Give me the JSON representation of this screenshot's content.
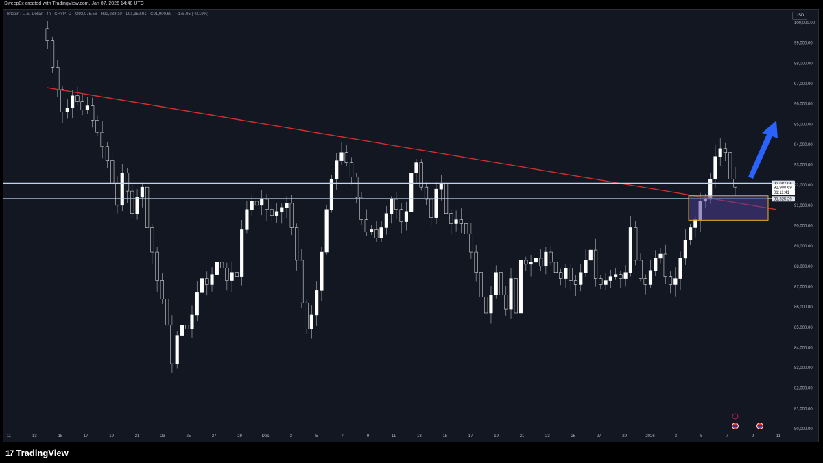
{
  "header": {
    "credit": "Sweep0x created with TradingView.com, Jan 07, 2026 14:48 UTC",
    "symbol": "Bitcoin / U.S. Dollar · 4h · CRYPTO",
    "open": "O92,075.56",
    "high": "H92,238.10",
    "low": "L91,359.91",
    "close": "C91,900.69",
    "change": "−175.95 (−0.19%)",
    "currency": "USD"
  },
  "footer": {
    "logo_mark": "17",
    "logo_text": "TradingView"
  },
  "colors": {
    "background": "#131722",
    "candle": "#ffffff",
    "trendline": "#d32f2f",
    "hline": "#bfd4f2",
    "zone_border": "#e5b323",
    "zone_fill": "#4b3d8f",
    "arrow": "#2962ff"
  },
  "chart_data": {
    "type": "candlestick",
    "title": "",
    "xlabel": "",
    "ylabel": "",
    "ylim": [
      79800,
      100500
    ],
    "grid": false,
    "y_ticks": [
      "100,000.00",
      "99,000.00",
      "98,000.00",
      "97,000.00",
      "96,000.00",
      "95,000.00",
      "94,000.00",
      "93,000.00",
      "92,000.00",
      "91,000.00",
      "90,000.00",
      "89,000.00",
      "88,000.00",
      "87,000.00",
      "86,000.00",
      "85,000.00",
      "84,000.00",
      "83,000.00",
      "82,000.00",
      "81,000.00",
      "80,000.00"
    ],
    "x_ticks": [
      "11",
      "13",
      "15",
      "17",
      "19",
      "21",
      "23",
      "25",
      "27",
      "29",
      "Dec",
      "3",
      "5",
      "7",
      "9",
      "11",
      "13",
      "15",
      "17",
      "19",
      "21",
      "23",
      "25",
      "27",
      "29",
      "2026",
      "3",
      "5",
      "7",
      "9",
      "11"
    ],
    "close_path": [
      [
        0,
        99700
      ],
      [
        1,
        99100
      ],
      [
        2,
        97800
      ],
      [
        3,
        96700
      ],
      [
        4,
        95600
      ],
      [
        5,
        95800
      ],
      [
        6,
        96400
      ],
      [
        7,
        96100
      ],
      [
        8,
        95700
      ],
      [
        9,
        95900
      ],
      [
        10,
        95200
      ],
      [
        11,
        94600
      ],
      [
        12,
        93900
      ],
      [
        13,
        93200
      ],
      [
        14,
        92100
      ],
      [
        15,
        91000
      ],
      [
        16,
        92600
      ],
      [
        17,
        91700
      ],
      [
        18,
        90600
      ],
      [
        19,
        91400
      ],
      [
        20,
        91900
      ],
      [
        21,
        89900
      ],
      [
        22,
        88700
      ],
      [
        23,
        87300
      ],
      [
        24,
        86400
      ],
      [
        25,
        85100
      ],
      [
        26,
        83200
      ],
      [
        27,
        84600
      ],
      [
        28,
        85100
      ],
      [
        29,
        84900
      ],
      [
        30,
        85600
      ],
      [
        31,
        86700
      ],
      [
        32,
        87400
      ],
      [
        33,
        87100
      ],
      [
        34,
        87600
      ],
      [
        35,
        88200
      ],
      [
        36,
        87900
      ],
      [
        37,
        87300
      ],
      [
        38,
        87700
      ],
      [
        39,
        87500
      ],
      [
        40,
        89800
      ],
      [
        41,
        90800
      ],
      [
        42,
        91200
      ],
      [
        43,
        91000
      ],
      [
        44,
        91300
      ],
      [
        45,
        90800
      ],
      [
        46,
        90500
      ],
      [
        47,
        90700
      ],
      [
        48,
        90900
      ],
      [
        49,
        91100
      ],
      [
        50,
        89900
      ],
      [
        51,
        88300
      ],
      [
        52,
        86200
      ],
      [
        53,
        84900
      ],
      [
        54,
        85600
      ],
      [
        55,
        86800
      ],
      [
        56,
        88700
      ],
      [
        57,
        90800
      ],
      [
        58,
        92300
      ],
      [
        59,
        93200
      ],
      [
        60,
        93600
      ],
      [
        61,
        93100
      ],
      [
        62,
        92400
      ],
      [
        63,
        91400
      ],
      [
        64,
        90300
      ],
      [
        65,
        89700
      ],
      [
        66,
        89800
      ],
      [
        67,
        89400
      ],
      [
        68,
        89900
      ],
      [
        69,
        90600
      ],
      [
        70,
        91300
      ],
      [
        71,
        90800
      ],
      [
        72,
        90200
      ],
      [
        73,
        90700
      ],
      [
        74,
        92600
      ],
      [
        75,
        93100
      ],
      [
        76,
        91900
      ],
      [
        77,
        91300
      ],
      [
        78,
        90400
      ],
      [
        79,
        91800
      ],
      [
        80,
        92100
      ],
      [
        81,
        90600
      ],
      [
        82,
        90100
      ],
      [
        83,
        90300
      ],
      [
        84,
        90100
      ],
      [
        85,
        89600
      ],
      [
        86,
        88700
      ],
      [
        87,
        87700
      ],
      [
        88,
        86500
      ],
      [
        89,
        85700
      ],
      [
        90,
        86600
      ],
      [
        91,
        87700
      ],
      [
        92,
        86600
      ],
      [
        93,
        85900
      ],
      [
        94,
        87400
      ],
      [
        95,
        85700
      ],
      [
        96,
        88300
      ],
      [
        97,
        88100
      ],
      [
        98,
        88200
      ],
      [
        99,
        88400
      ],
      [
        100,
        88000
      ],
      [
        101,
        88700
      ],
      [
        102,
        88200
      ],
      [
        103,
        87700
      ],
      [
        104,
        87400
      ],
      [
        105,
        87900
      ],
      [
        106,
        87300
      ],
      [
        107,
        87100
      ],
      [
        108,
        87700
      ],
      [
        109,
        88300
      ],
      [
        110,
        88800
      ],
      [
        111,
        87400
      ],
      [
        112,
        87100
      ],
      [
        113,
        87300
      ],
      [
        114,
        87500
      ],
      [
        115,
        87600
      ],
      [
        116,
        87400
      ],
      [
        117,
        87700
      ],
      [
        118,
        89900
      ],
      [
        119,
        88300
      ],
      [
        120,
        87400
      ],
      [
        121,
        87100
      ],
      [
        122,
        87800
      ],
      [
        123,
        88400
      ],
      [
        124,
        88600
      ],
      [
        125,
        87500
      ],
      [
        126,
        87100
      ],
      [
        127,
        87400
      ],
      [
        128,
        88400
      ],
      [
        129,
        89300
      ],
      [
        130,
        89900
      ],
      [
        131,
        90300
      ],
      [
        132,
        91200
      ],
      [
        133,
        91300
      ],
      [
        134,
        92300
      ],
      [
        135,
        93400
      ],
      [
        136,
        93800
      ],
      [
        137,
        93600
      ],
      [
        138,
        92300
      ],
      [
        139,
        91900
      ]
    ],
    "annotations": {
      "resistance_level": "92,087.96",
      "last_price": "91,900.69",
      "countdown": "01:11:41",
      "support_level": "91,325.29"
    },
    "trendline": {
      "from": [
        "Nov 13",
        96800
      ],
      "to": [
        "Jan 9",
        90800
      ]
    }
  }
}
